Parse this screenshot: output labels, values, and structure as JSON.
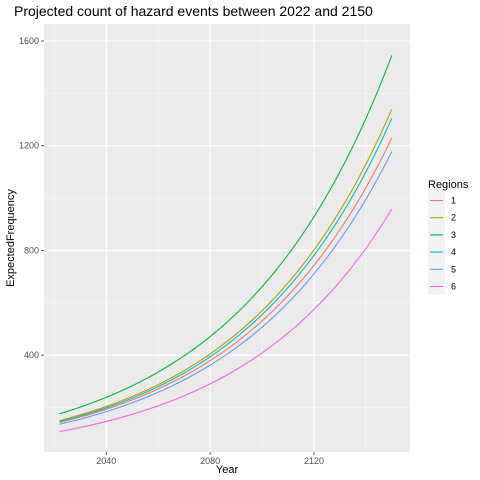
{
  "chart_data": {
    "type": "line",
    "title": "Projected count of hazard events between 2022 and 2150",
    "xlabel": "Year",
    "ylabel": "ExpectedFrequency",
    "xlim": [
      2016,
      2157
    ],
    "ylim": [
      30,
      1665
    ],
    "x_ticks": [
      2040,
      2080,
      2120
    ],
    "y_ticks": [
      400,
      800,
      1200,
      1600
    ],
    "x_minor": [
      2020,
      2060,
      2100,
      2140
    ],
    "y_minor": [
      200,
      600,
      1000,
      1400
    ],
    "grid": true,
    "legend": {
      "title": "Regions",
      "position": "right"
    },
    "x_range": [
      2022,
      2150
    ],
    "series": [
      {
        "name": "1",
        "color": "#F8766D",
        "start": 143,
        "end": 1230
      },
      {
        "name": "2",
        "color": "#B79F00",
        "start": 150,
        "end": 1340
      },
      {
        "name": "3",
        "color": "#00BA38",
        "start": 176,
        "end": 1545
      },
      {
        "name": "4",
        "color": "#00BFC4",
        "start": 146,
        "end": 1305
      },
      {
        "name": "5",
        "color": "#619CFF",
        "start": 136,
        "end": 1178
      },
      {
        "name": "6",
        "color": "#F564E3",
        "start": 108,
        "end": 958
      }
    ]
  }
}
